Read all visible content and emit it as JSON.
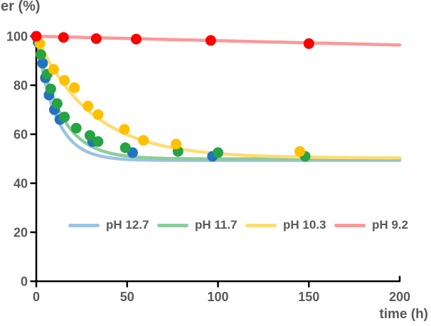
{
  "chart_data": {
    "type": "scatter",
    "title": "",
    "grid": false,
    "legend_position": "inside-bottom-center",
    "background_color": "#ffffff",
    "axis_color": "#000000",
    "text_color": "#595959",
    "x_axis": {
      "label": "time (h)",
      "min": 0,
      "max": 200,
      "ticks": [
        0,
        50,
        100,
        150,
        200
      ]
    },
    "y_axis": {
      "label": "er (%)",
      "min": 0,
      "max": 100,
      "ticks": [
        0,
        20,
        40,
        60,
        80,
        100
      ]
    },
    "series": [
      {
        "name": "pH 12.7",
        "marker_color": "#2272C3",
        "line_color": "#9DC3E6",
        "trend": {
          "model": "plateau + amplitude * exp(-k*t)",
          "plateau": 49.3,
          "amplitude": 50.7,
          "k": 0.095
        },
        "points": [
          [
            1,
            97.5
          ],
          [
            3.5,
            89
          ],
          [
            5,
            83
          ],
          [
            7,
            76
          ],
          [
            10,
            70
          ],
          [
            13,
            66
          ],
          [
            31,
            57
          ],
          [
            53,
            52.5
          ],
          [
            97,
            51
          ]
        ]
      },
      {
        "name": "pH 11.7",
        "marker_color": "#26A342",
        "line_color": "#8BCD9B",
        "trend": {
          "model": "plateau + amplitude * exp(-k*t)",
          "plateau": 49.9,
          "amplitude": 50.1,
          "k": 0.075
        },
        "points": [
          [
            2.5,
            92.5
          ],
          [
            6,
            84.5
          ],
          [
            8,
            78.5
          ],
          [
            11.5,
            72.5
          ],
          [
            15.5,
            67
          ],
          [
            22,
            62.5
          ],
          [
            29.5,
            59.5
          ],
          [
            34,
            57
          ],
          [
            49,
            54.5
          ],
          [
            78,
            53
          ],
          [
            100,
            52.5
          ],
          [
            148,
            51
          ]
        ]
      },
      {
        "name": "pH 10.3",
        "marker_color": "#FFC000",
        "line_color": "#FFDC73",
        "trend": {
          "model": "plateau + amplitude * exp(-k*t)",
          "plateau": 50.3,
          "amplitude": 49.7,
          "k": 0.033
        },
        "points": [
          [
            2,
            97
          ],
          [
            9.5,
            86.5
          ],
          [
            15.5,
            82
          ],
          [
            21,
            79
          ],
          [
            28.5,
            71.5
          ],
          [
            34,
            68
          ],
          [
            48.5,
            62
          ],
          [
            59,
            57.5
          ],
          [
            77,
            56
          ],
          [
            145,
            53
          ]
        ]
      },
      {
        "name": "pH 9.2",
        "marker_color": "#FF0000",
        "line_color": "#FB9999",
        "trend": {
          "model": "plateau + amplitude * exp(-k*t)",
          "plateau": 50,
          "amplitude": 50,
          "k": 0.00037
        },
        "points": [
          [
            0,
            100
          ],
          [
            15,
            99.5
          ],
          [
            33,
            99
          ],
          [
            55,
            98.8
          ],
          [
            96,
            98.3
          ],
          [
            150,
            97
          ]
        ]
      }
    ]
  }
}
